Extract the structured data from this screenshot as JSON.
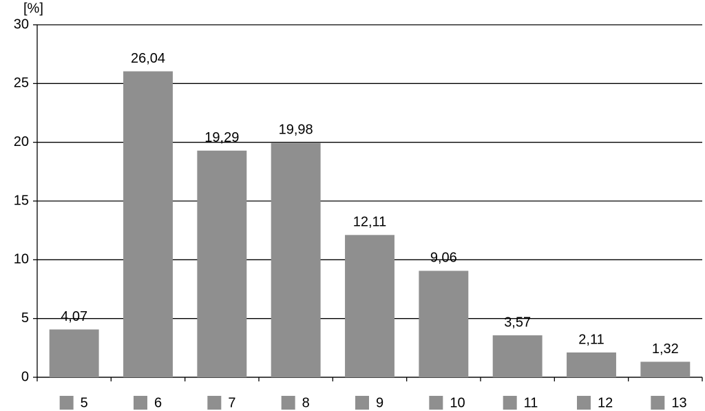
{
  "chart_data": {
    "type": "bar",
    "y_label": "[%]",
    "categories": [
      "5",
      "6",
      "7",
      "8",
      "9",
      "10",
      "11",
      "12",
      "13"
    ],
    "values": [
      4.07,
      26.04,
      19.29,
      19.98,
      12.11,
      9.06,
      3.57,
      2.11,
      1.32
    ],
    "value_labels": [
      "4,07",
      "26,04",
      "19,29",
      "19,98",
      "12,11",
      "9,06",
      "3,57",
      "2,11",
      "1,32"
    ],
    "color": "#8f8f8f",
    "ylim": [
      0,
      30
    ],
    "yticks": [
      0,
      5,
      10,
      15,
      20,
      25,
      30
    ],
    "grid": true
  }
}
